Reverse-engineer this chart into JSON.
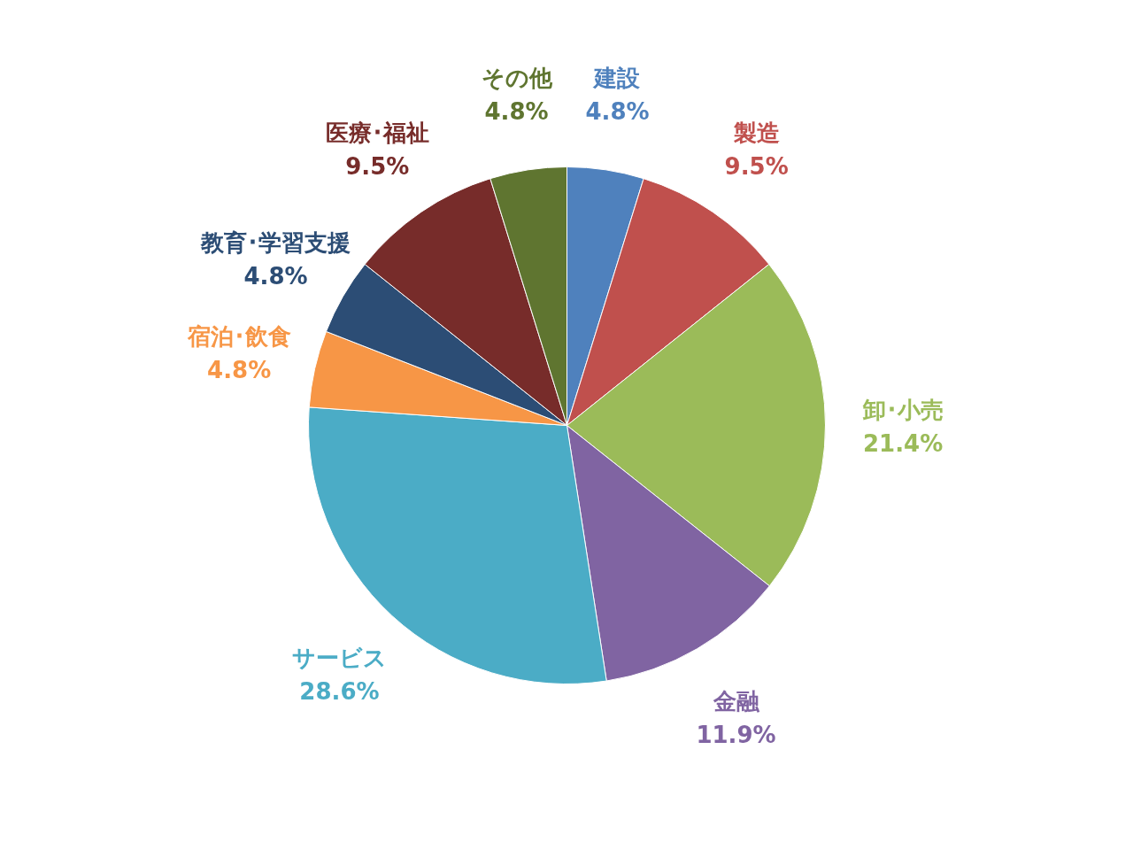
{
  "chart_data": {
    "type": "pie",
    "categories": [
      "建設",
      "製造",
      "卸･小売",
      "金融",
      "サービス",
      "宿泊･飲食",
      "教育･学習支援",
      "医療･福祉",
      "その他"
    ],
    "values": [
      4.8,
      9.5,
      21.4,
      11.9,
      28.6,
      4.8,
      4.8,
      9.5,
      4.8
    ],
    "colors": [
      "#4f81bd",
      "#c0504d",
      "#9bbb59",
      "#8064a2",
      "#4bacc6",
      "#f79646",
      "#2c4d75",
      "#772c2a",
      "#5f7530"
    ],
    "value_labels": [
      "4.8%",
      "9.5%",
      "21.4%",
      "11.9%",
      "28.6%",
      "4.8%",
      "4.8%",
      "9.5%",
      "4.8%"
    ]
  }
}
